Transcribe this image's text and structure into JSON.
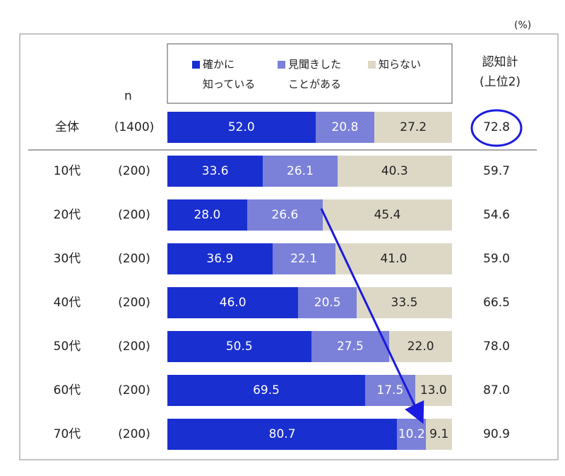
{
  "chart_data": {
    "type": "stacked-bar",
    "unit": "(%)",
    "categories": [
      "全体",
      "10代",
      "20代",
      "30代",
      "40代",
      "50代",
      "60代",
      "70代"
    ],
    "n": {
      "header": "n",
      "values": [
        1400,
        200,
        200,
        200,
        200,
        200,
        200,
        200
      ],
      "value_labels": [
        "(1400)",
        "(200)",
        "(200)",
        "(200)",
        "(200)",
        "(200)",
        "(200)",
        "(200)"
      ]
    },
    "series": [
      {
        "name": "確かに\n知っている",
        "color": "#1a2fd0",
        "label_color": "#ffffff",
        "values": [
          52.0,
          33.6,
          28.0,
          36.9,
          46.0,
          50.5,
          69.5,
          80.7
        ],
        "value_labels": [
          "52.0",
          "33.6",
          "28.0",
          "36.9",
          "46.0",
          "50.5",
          "69.5",
          "80.7"
        ]
      },
      {
        "name": "見聞きした\nことがある",
        "color": "#7b80d8",
        "label_color": "#ffffff",
        "values": [
          20.8,
          26.1,
          26.6,
          22.1,
          20.5,
          27.5,
          17.5,
          10.2
        ],
        "value_labels": [
          "20.8",
          "26.1",
          "26.6",
          "22.1",
          "20.5",
          "27.5",
          "17.5",
          "10.2"
        ]
      },
      {
        "name": "知らない",
        "color": "#ddd8c6",
        "label_color": "#222222",
        "values": [
          27.2,
          40.3,
          45.4,
          41.0,
          33.5,
          22.0,
          13.0,
          9.1
        ],
        "value_labels": [
          "27.2",
          "40.3",
          "45.4",
          "41.0",
          "33.5",
          "22.0",
          "13.0",
          "9.1"
        ]
      }
    ],
    "total": {
      "header": "認知計\n(上位2)",
      "values": [
        72.8,
        59.7,
        54.6,
        59.0,
        66.5,
        78.0,
        87.0,
        90.9
      ],
      "value_labels": [
        "72.8",
        "59.7",
        "54.6",
        "59.0",
        "66.5",
        "78.0",
        "87.0",
        "90.9"
      ]
    },
    "xlim": [
      0,
      100
    ]
  }
}
